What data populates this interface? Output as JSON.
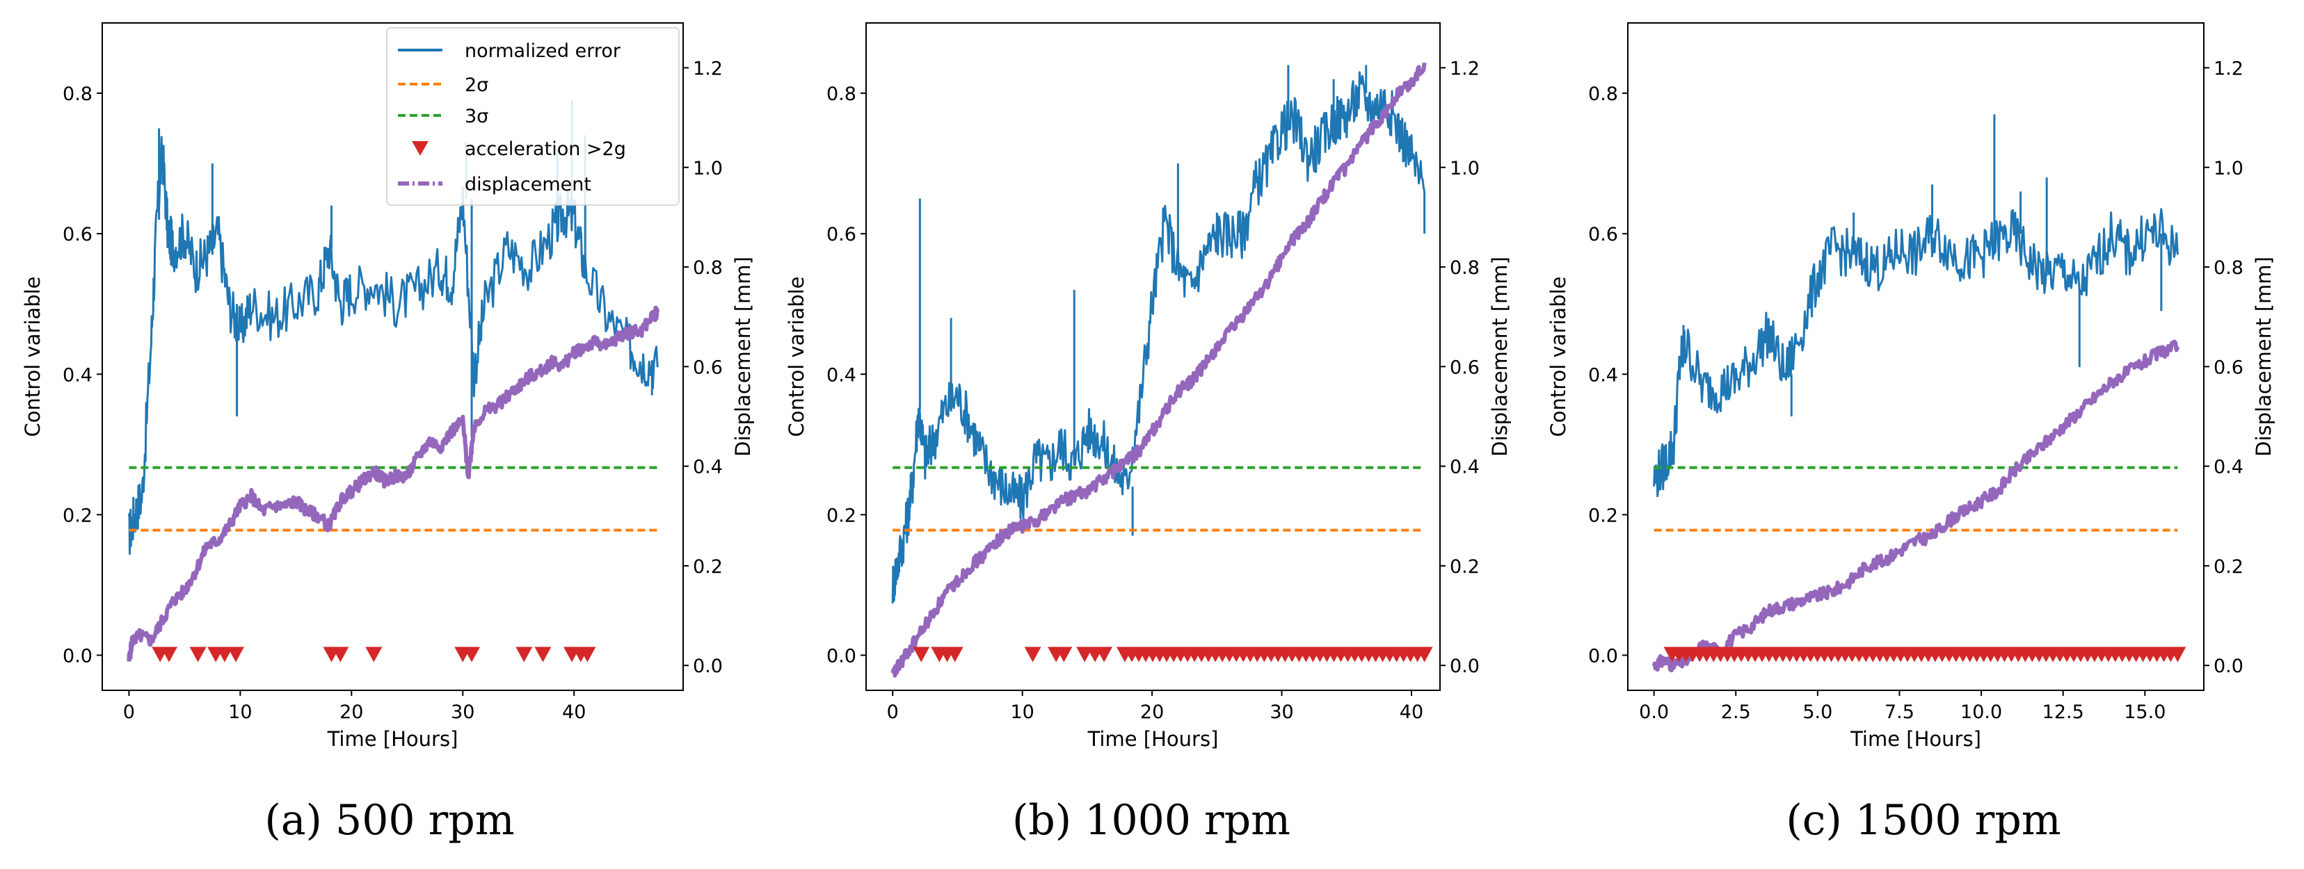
{
  "figure": {
    "colors": {
      "error": "#1f77b4",
      "sigma2": "#ff7f0e",
      "sigma3": "#2ca02c",
      "accel": "#d62728",
      "displacement": "#9467bd"
    }
  },
  "legend": {
    "items": [
      {
        "label": "normalized error",
        "icon": "solid-line-icon"
      },
      {
        "label": "2σ",
        "icon": "dashed-line-icon"
      },
      {
        "label": "3σ",
        "icon": "dashed-line-icon"
      },
      {
        "label": "acceleration >2g",
        "icon": "down-triangle-icon"
      },
      {
        "label": "displacement",
        "icon": "dash-dot-line-icon"
      }
    ]
  },
  "chart_data": [
    {
      "type": "line",
      "caption_letter": "(a)",
      "caption_text": " 500 rpm",
      "xlabel": "Time [Hours]",
      "ylabel": "Control variable",
      "ylabel2": "Displacement [mm]",
      "xlim": [
        -2.4,
        49.8
      ],
      "ylim": [
        -0.05,
        0.9
      ],
      "y2lim": [
        -0.05,
        1.29
      ],
      "xticks": [
        0,
        10,
        20,
        30,
        40
      ],
      "yticks": [
        0.0,
        0.2,
        0.4,
        0.6,
        0.8
      ],
      "y2ticks": [
        0.0,
        0.2,
        0.4,
        0.6,
        0.8,
        1.0,
        1.2
      ],
      "two_sigma": 0.178,
      "three_sigma": 0.267,
      "threshold_x_range": [
        0,
        47.5
      ],
      "accel_events": [
        2.8,
        3.6,
        6.2,
        7.8,
        8.6,
        9.6,
        18.2,
        19.0,
        22.0,
        30.0,
        30.8,
        35.5,
        37.2,
        39.8,
        40.6,
        41.2
      ],
      "error_series": [
        [
          0,
          0.17
        ],
        [
          0.5,
          0.2
        ],
        [
          1.2,
          0.23
        ],
        [
          2,
          0.45
        ],
        [
          2.5,
          0.62
        ],
        [
          3,
          0.72
        ],
        [
          3.5,
          0.6
        ],
        [
          4,
          0.58
        ],
        [
          5,
          0.6
        ],
        [
          6,
          0.55
        ],
        [
          7,
          0.57
        ],
        [
          8,
          0.6
        ],
        [
          9,
          0.5
        ],
        [
          10,
          0.46
        ],
        [
          11,
          0.5
        ],
        [
          13,
          0.48
        ],
        [
          15,
          0.5
        ],
        [
          17,
          0.52
        ],
        [
          18,
          0.58
        ],
        [
          19,
          0.5
        ],
        [
          20,
          0.52
        ],
        [
          22,
          0.53
        ],
        [
          24,
          0.5
        ],
        [
          26,
          0.52
        ],
        [
          28,
          0.55
        ],
        [
          29,
          0.53
        ],
        [
          30,
          0.65
        ],
        [
          31,
          0.4
        ],
        [
          32,
          0.5
        ],
        [
          34,
          0.58
        ],
        [
          36,
          0.55
        ],
        [
          38,
          0.6
        ],
        [
          39,
          0.63
        ],
        [
          40,
          0.62
        ],
        [
          41,
          0.55
        ],
        [
          43,
          0.48
        ],
        [
          45,
          0.44
        ],
        [
          46,
          0.42
        ],
        [
          47.5,
          0.41
        ]
      ],
      "error_spikes": [
        [
          2.7,
          0.75
        ],
        [
          3.3,
          0.72
        ],
        [
          7.5,
          0.7
        ],
        [
          9.7,
          0.34
        ],
        [
          18.2,
          0.64
        ],
        [
          30.3,
          0.73
        ],
        [
          30.8,
          0.31
        ],
        [
          38.5,
          0.72
        ],
        [
          39.8,
          0.79
        ],
        [
          41,
          0.74
        ],
        [
          47,
          0.37
        ]
      ],
      "displacement_series": [
        [
          0,
          0.01
        ],
        [
          0.3,
          0.05
        ],
        [
          1,
          0.06
        ],
        [
          2,
          0.05
        ],
        [
          3,
          0.09
        ],
        [
          4,
          0.13
        ],
        [
          5,
          0.15
        ],
        [
          6,
          0.19
        ],
        [
          7,
          0.24
        ],
        [
          8,
          0.25
        ],
        [
          9,
          0.28
        ],
        [
          10,
          0.32
        ],
        [
          11,
          0.34
        ],
        [
          12,
          0.31
        ],
        [
          13,
          0.32
        ],
        [
          14,
          0.32
        ],
        [
          15,
          0.33
        ],
        [
          16,
          0.31
        ],
        [
          17,
          0.3
        ],
        [
          18,
          0.28
        ],
        [
          19,
          0.33
        ],
        [
          20,
          0.35
        ],
        [
          21,
          0.37
        ],
        [
          22,
          0.39
        ],
        [
          23,
          0.37
        ],
        [
          24,
          0.38
        ],
        [
          25,
          0.38
        ],
        [
          26,
          0.42
        ],
        [
          27,
          0.45
        ],
        [
          28,
          0.44
        ],
        [
          29,
          0.47
        ],
        [
          30,
          0.49
        ],
        [
          30.5,
          0.38
        ],
        [
          31,
          0.48
        ],
        [
          32,
          0.51
        ],
        [
          33,
          0.52
        ],
        [
          34,
          0.54
        ],
        [
          35,
          0.56
        ],
        [
          36,
          0.58
        ],
        [
          37,
          0.59
        ],
        [
          38,
          0.61
        ],
        [
          39,
          0.6
        ],
        [
          40,
          0.63
        ],
        [
          41,
          0.64
        ],
        [
          42,
          0.65
        ],
        [
          43,
          0.64
        ],
        [
          44,
          0.66
        ],
        [
          45,
          0.67
        ],
        [
          46,
          0.67
        ],
        [
          47,
          0.7
        ],
        [
          47.5,
          0.71
        ]
      ]
    },
    {
      "type": "line",
      "caption_letter": "(b)",
      "caption_text": " 1000 rpm",
      "xlabel": "Time [Hours]",
      "ylabel": "Control variable",
      "ylabel2": "Displacement [mm]",
      "xlim": [
        -2.05,
        42.2
      ],
      "ylim": [
        -0.05,
        0.9
      ],
      "y2lim": [
        -0.05,
        1.29
      ],
      "xticks": [
        0,
        10,
        20,
        30,
        40
      ],
      "yticks": [
        0.0,
        0.2,
        0.4,
        0.6,
        0.8
      ],
      "y2ticks": [
        0.0,
        0.2,
        0.4,
        0.6,
        0.8,
        1.0,
        1.2
      ],
      "two_sigma": 0.178,
      "three_sigma": 0.267,
      "threshold_x_range": [
        0,
        41
      ],
      "accel_events": [
        2.2,
        3.6,
        4.2,
        4.8,
        10.8,
        12.6,
        13.2,
        14.8,
        15.6,
        16.3
      ],
      "accel_band": [
        17.9,
        41
      ],
      "error_series": [
        [
          0,
          0.1
        ],
        [
          0.5,
          0.14
        ],
        [
          1,
          0.18
        ],
        [
          1.5,
          0.24
        ],
        [
          2,
          0.35
        ],
        [
          2.5,
          0.28
        ],
        [
          3,
          0.3
        ],
        [
          4,
          0.35
        ],
        [
          5,
          0.37
        ],
        [
          6,
          0.33
        ],
        [
          7,
          0.28
        ],
        [
          8,
          0.25
        ],
        [
          9,
          0.23
        ],
        [
          10,
          0.22
        ],
        [
          11,
          0.28
        ],
        [
          12,
          0.27
        ],
        [
          13,
          0.3
        ],
        [
          14,
          0.27
        ],
        [
          15,
          0.32
        ],
        [
          16,
          0.31
        ],
        [
          17,
          0.27
        ],
        [
          18,
          0.24
        ],
        [
          19,
          0.35
        ],
        [
          20,
          0.5
        ],
        [
          21,
          0.62
        ],
        [
          22,
          0.55
        ],
        [
          23,
          0.52
        ],
        [
          24,
          0.57
        ],
        [
          25,
          0.6
        ],
        [
          26,
          0.6
        ],
        [
          27,
          0.6
        ],
        [
          28,
          0.67
        ],
        [
          29,
          0.7
        ],
        [
          30,
          0.75
        ],
        [
          31,
          0.76
        ],
        [
          32,
          0.71
        ],
        [
          33,
          0.73
        ],
        [
          34,
          0.76
        ],
        [
          35,
          0.77
        ],
        [
          36,
          0.8
        ],
        [
          37,
          0.78
        ],
        [
          38,
          0.79
        ],
        [
          39,
          0.75
        ],
        [
          40,
          0.71
        ],
        [
          41,
          0.66
        ]
      ],
      "error_spikes": [
        [
          2.1,
          0.65
        ],
        [
          4.5,
          0.48
        ],
        [
          14,
          0.52
        ],
        [
          18.5,
          0.17
        ],
        [
          22,
          0.7
        ],
        [
          25,
          0.63
        ],
        [
          30.5,
          0.84
        ],
        [
          34,
          0.82
        ],
        [
          36.5,
          0.84
        ],
        [
          41,
          0.6
        ]
      ],
      "displacement_series": [
        [
          0,
          -0.02
        ],
        [
          0.5,
          0.0
        ],
        [
          1,
          0.02
        ],
        [
          2,
          0.06
        ],
        [
          3,
          0.1
        ],
        [
          4,
          0.14
        ],
        [
          5,
          0.17
        ],
        [
          6,
          0.2
        ],
        [
          7,
          0.22
        ],
        [
          8,
          0.25
        ],
        [
          9,
          0.27
        ],
        [
          10,
          0.28
        ],
        [
          11,
          0.29
        ],
        [
          12,
          0.31
        ],
        [
          13,
          0.33
        ],
        [
          14,
          0.34
        ],
        [
          15,
          0.35
        ],
        [
          16,
          0.37
        ],
        [
          17,
          0.39
        ],
        [
          18,
          0.41
        ],
        [
          19,
          0.43
        ],
        [
          20,
          0.47
        ],
        [
          21,
          0.51
        ],
        [
          22,
          0.55
        ],
        [
          23,
          0.57
        ],
        [
          24,
          0.6
        ],
        [
          25,
          0.64
        ],
        [
          26,
          0.67
        ],
        [
          27,
          0.7
        ],
        [
          28,
          0.74
        ],
        [
          29,
          0.77
        ],
        [
          30,
          0.82
        ],
        [
          31,
          0.86
        ],
        [
          32,
          0.89
        ],
        [
          33,
          0.93
        ],
        [
          34,
          0.97
        ],
        [
          35,
          1.0
        ],
        [
          36,
          1.04
        ],
        [
          37,
          1.08
        ],
        [
          38,
          1.11
        ],
        [
          39,
          1.15
        ],
        [
          40,
          1.17
        ],
        [
          41,
          1.21
        ]
      ]
    },
    {
      "type": "line",
      "caption_letter": "(c)",
      "caption_text": " 1500 rpm",
      "xlabel": "Time [Hours]",
      "ylabel": "Control variable",
      "ylabel2": "Displacement [mm]",
      "xlim": [
        -0.8,
        16.8
      ],
      "ylim": [
        -0.05,
        0.9
      ],
      "y2lim": [
        -0.05,
        1.29
      ],
      "xticks": [
        0.0,
        2.5,
        5.0,
        7.5,
        10.0,
        12.5,
        15.0
      ],
      "yticks": [
        0.0,
        0.2,
        0.4,
        0.6,
        0.8
      ],
      "y2ticks": [
        0.0,
        0.2,
        0.4,
        0.6,
        0.8,
        1.0,
        1.2
      ],
      "two_sigma": 0.178,
      "three_sigma": 0.267,
      "threshold_x_range": [
        0,
        16
      ],
      "accel_events": [],
      "accel_band": [
        0.55,
        16
      ],
      "error_series": [
        [
          0,
          0.25
        ],
        [
          0.3,
          0.27
        ],
        [
          0.6,
          0.3
        ],
        [
          0.8,
          0.42
        ],
        [
          1,
          0.44
        ],
        [
          1.5,
          0.38
        ],
        [
          2,
          0.38
        ],
        [
          2.5,
          0.39
        ],
        [
          3,
          0.42
        ],
        [
          3.5,
          0.46
        ],
        [
          4,
          0.4
        ],
        [
          4.5,
          0.46
        ],
        [
          5,
          0.54
        ],
        [
          5.5,
          0.58
        ],
        [
          6,
          0.57
        ],
        [
          6.5,
          0.56
        ],
        [
          7,
          0.55
        ],
        [
          7.5,
          0.58
        ],
        [
          8,
          0.57
        ],
        [
          8.5,
          0.6
        ],
        [
          9,
          0.58
        ],
        [
          9.5,
          0.56
        ],
        [
          10,
          0.57
        ],
        [
          10.5,
          0.59
        ],
        [
          11,
          0.6
        ],
        [
          11.5,
          0.56
        ],
        [
          12,
          0.54
        ],
        [
          12.5,
          0.55
        ],
        [
          13,
          0.52
        ],
        [
          13.5,
          0.56
        ],
        [
          14,
          0.6
        ],
        [
          14.5,
          0.57
        ],
        [
          15,
          0.6
        ],
        [
          15.5,
          0.6
        ],
        [
          16,
          0.57
        ]
      ],
      "error_spikes": [
        [
          0.9,
          0.47
        ],
        [
          4.2,
          0.34
        ],
        [
          6.1,
          0.63
        ],
        [
          8.5,
          0.67
        ],
        [
          10.4,
          0.77
        ],
        [
          11.2,
          0.66
        ],
        [
          12,
          0.68
        ],
        [
          13,
          0.41
        ],
        [
          15.5,
          0.49
        ]
      ],
      "displacement_series": [
        [
          0,
          0.0
        ],
        [
          0.3,
          0.01
        ],
        [
          0.6,
          0.0
        ],
        [
          1,
          0.01
        ],
        [
          1.5,
          0.04
        ],
        [
          2,
          0.03
        ],
        [
          2.5,
          0.06
        ],
        [
          3,
          0.08
        ],
        [
          3.5,
          0.11
        ],
        [
          4,
          0.12
        ],
        [
          4.5,
          0.13
        ],
        [
          5,
          0.14
        ],
        [
          5.5,
          0.15
        ],
        [
          6,
          0.17
        ],
        [
          6.5,
          0.2
        ],
        [
          7,
          0.21
        ],
        [
          7.5,
          0.23
        ],
        [
          8,
          0.25
        ],
        [
          8.5,
          0.26
        ],
        [
          9,
          0.29
        ],
        [
          9.5,
          0.31
        ],
        [
          10,
          0.33
        ],
        [
          10.5,
          0.35
        ],
        [
          11,
          0.39
        ],
        [
          11.5,
          0.42
        ],
        [
          12,
          0.45
        ],
        [
          12.5,
          0.48
        ],
        [
          13,
          0.51
        ],
        [
          13.5,
          0.54
        ],
        [
          14,
          0.57
        ],
        [
          14.5,
          0.59
        ],
        [
          15,
          0.61
        ],
        [
          15.5,
          0.63
        ],
        [
          16,
          0.64
        ]
      ]
    }
  ]
}
